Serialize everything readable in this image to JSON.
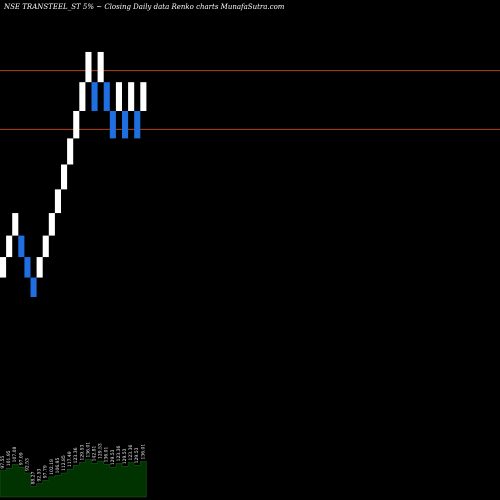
{
  "title": "NSE TRANSTEEL_ST 5% ~  Closing Daily data  Renko  charts MunafaSutra.com",
  "colors": {
    "background": "#000000",
    "up_brick": "#ffffff",
    "down_brick": "#1f6fe0",
    "level_line": "#c8501e",
    "volume_fill": "#003300",
    "volume_outline": "#1f5f1f"
  },
  "chart_data": {
    "type": "renko",
    "brick_percent": 5,
    "price_range": [
      60,
      150
    ],
    "level_lines": [
      138.6,
      125.4
    ],
    "bricks": [
      {
        "dir": "up",
        "low": 92.05,
        "high": 96.66
      },
      {
        "dir": "up",
        "low": 96.66,
        "high": 101.49
      },
      {
        "dir": "up",
        "low": 101.49,
        "high": 106.56
      },
      {
        "dir": "down",
        "low": 96.66,
        "high": 101.49
      },
      {
        "dir": "down",
        "low": 92.05,
        "high": 96.66
      },
      {
        "dir": "down",
        "low": 87.67,
        "high": 92.05
      },
      {
        "dir": "up",
        "low": 92.05,
        "high": 96.66
      },
      {
        "dir": "up",
        "low": 96.66,
        "high": 101.49
      },
      {
        "dir": "up",
        "low": 101.49,
        "high": 106.56
      },
      {
        "dir": "up",
        "low": 106.56,
        "high": 111.89
      },
      {
        "dir": "up",
        "low": 111.89,
        "high": 117.49
      },
      {
        "dir": "up",
        "low": 117.49,
        "high": 123.36
      },
      {
        "dir": "up",
        "low": 123.36,
        "high": 129.53
      },
      {
        "dir": "up",
        "low": 129.53,
        "high": 136.01
      },
      {
        "dir": "up",
        "low": 136.01,
        "high": 142.81
      },
      {
        "dir": "down",
        "low": 129.53,
        "high": 136.01
      },
      {
        "dir": "up",
        "low": 136.01,
        "high": 142.81
      },
      {
        "dir": "down",
        "low": 129.53,
        "high": 136.01
      },
      {
        "dir": "down",
        "low": 123.36,
        "high": 129.53
      },
      {
        "dir": "up",
        "low": 129.53,
        "high": 136.01
      },
      {
        "dir": "down",
        "low": 123.36,
        "high": 129.53
      },
      {
        "dir": "up",
        "low": 129.53,
        "high": 136.01
      },
      {
        "dir": "down",
        "low": 123.36,
        "high": 129.53
      },
      {
        "dir": "up",
        "low": 129.53,
        "high": 136.01
      }
    ],
    "volume_labels": [
      "97.55",
      "101.95",
      "107.08",
      "97.09",
      "92.53",
      "88.27",
      "92.53",
      "97.79",
      "102.18",
      "106.95",
      "112.85",
      "117.49",
      "123.36",
      "129.53",
      "136.01",
      "142.81",
      "129.53",
      "136.01",
      "129.53",
      "123.36",
      "129.53",
      "123.36",
      "129.53",
      "136.01"
    ],
    "volume_heights": [
      0.55,
      0.6,
      0.68,
      0.62,
      0.5,
      0.22,
      0.28,
      0.35,
      0.42,
      0.45,
      0.5,
      0.58,
      0.66,
      0.72,
      0.78,
      0.7,
      0.75,
      0.68,
      0.62,
      0.7,
      0.64,
      0.72,
      0.66,
      0.74
    ]
  }
}
